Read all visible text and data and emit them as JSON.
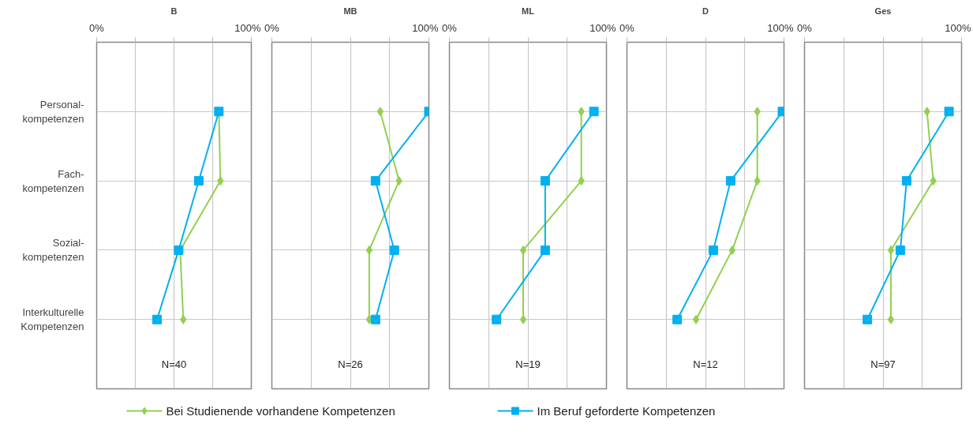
{
  "chart_data": [
    {
      "type": "line",
      "title": "B",
      "orientation": "horizontal",
      "categories": [
        "Personal-\nkompetenzen",
        "Fach-\nkompetenzen",
        "Sozial-\nkompetenzen",
        "Interkulturelle\nKompetenzen"
      ],
      "xlim": [
        0,
        100
      ],
      "xticks": [
        {
          "value": 0,
          "label": "0%"
        },
        {
          "value": 25,
          "label": null
        },
        {
          "value": 50,
          "label": null
        },
        {
          "value": 75,
          "label": null
        },
        {
          "value": 100,
          "label": "100%"
        }
      ],
      "grid": true,
      "legend": "bottom",
      "line_style": "solid",
      "annotations": [
        "N=40"
      ],
      "series": [
        {
          "name": "Bei Studienende vorhandene Kompetenzen",
          "color": "#92d050",
          "marker": "diamond",
          "values": [
            79,
            80,
            54,
            56
          ]
        },
        {
          "name": "Im Beruf geforderte Kompetenzen",
          "color": "#00b0f0",
          "marker": "square",
          "values": [
            79,
            66,
            53,
            39
          ]
        }
      ]
    },
    {
      "type": "line",
      "title": "MB",
      "orientation": "horizontal",
      "tick_labels": "x",
      "xlim": [
        0,
        100
      ],
      "xticks": [
        {
          "value": 0,
          "label": "0%"
        },
        {
          "value": 25,
          "label": null
        },
        {
          "value": 50,
          "label": null
        },
        {
          "value": 75,
          "label": null
        },
        {
          "value": 100,
          "label": "100%"
        }
      ],
      "grid": true,
      "line_style": "solid",
      "annotations": [
        "N=26"
      ],
      "series": [
        {
          "color": "#92d050",
          "marker": "diamond",
          "values": [
            69,
            81,
            62,
            62
          ]
        },
        {
          "color": "#00b0f0",
          "marker": "square",
          "values": [
            100,
            66,
            78,
            66
          ]
        }
      ]
    },
    {
      "type": "line",
      "title": "ML",
      "orientation": "horizontal",
      "tick_labels": "x",
      "xlim": [
        0,
        100
      ],
      "xticks": [
        {
          "value": 0,
          "label": "0%"
        },
        {
          "value": 25,
          "label": null
        },
        {
          "value": 50,
          "label": null
        },
        {
          "value": 75,
          "label": null
        },
        {
          "value": 100,
          "label": "100%"
        }
      ],
      "grid": true,
      "line_style": "solid",
      "annotations": [
        "N=19"
      ],
      "series": [
        {
          "color": "#92d050",
          "marker": "diamond",
          "values": [
            84,
            84,
            47,
            47
          ]
        },
        {
          "color": "#00b0f0",
          "marker": "square",
          "values": [
            92,
            61,
            61,
            30
          ]
        }
      ]
    },
    {
      "type": "line",
      "title": "D",
      "orientation": "horizontal",
      "tick_labels": "x",
      "xlim": [
        0,
        100
      ],
      "xticks": [
        {
          "value": 0,
          "label": "0%"
        },
        {
          "value": 25,
          "label": null
        },
        {
          "value": 50,
          "label": null
        },
        {
          "value": 75,
          "label": null
        },
        {
          "value": 100,
          "label": "100%"
        }
      ],
      "grid": true,
      "line_style": "solid",
      "annotations": [
        "N=12"
      ],
      "series": [
        {
          "color": "#92d050",
          "marker": "diamond",
          "values": [
            83,
            83,
            67,
            44
          ]
        },
        {
          "color": "#00b0f0",
          "marker": "square",
          "values": [
            99,
            66,
            55,
            32
          ]
        }
      ]
    },
    {
      "type": "line",
      "title": "Ges",
      "orientation": "horizontal",
      "tick_labels": "x",
      "xlim": [
        0,
        100
      ],
      "xticks": [
        {
          "value": 0,
          "label": "0%"
        },
        {
          "value": 25,
          "label": null
        },
        {
          "value": 50,
          "label": null
        },
        {
          "value": 75,
          "label": null
        },
        {
          "value": 100,
          "label": "100%"
        }
      ],
      "grid": true,
      "line_style": "solid",
      "annotations": [
        "N=97"
      ],
      "series": [
        {
          "color": "#92d050",
          "marker": "diamond",
          "values": [
            78,
            82,
            55,
            55
          ]
        },
        {
          "color": "#00b0f0",
          "marker": "square",
          "values": [
            92,
            65,
            61,
            40
          ]
        }
      ]
    }
  ]
}
